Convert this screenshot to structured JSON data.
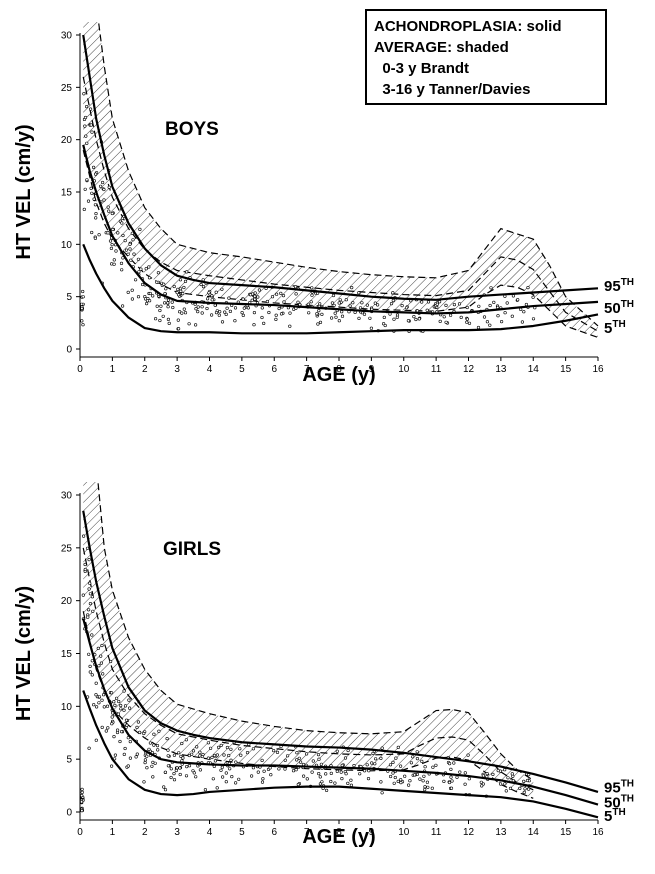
{
  "legend": {
    "lines": [
      "ACHONDROPLASIA: solid",
      "AVERAGE: shaded",
      "  0-3 y Brandt",
      "  3-16 y Tanner/Davies"
    ]
  },
  "colors": {
    "ink": "#000000",
    "background": "#ffffff",
    "hatch": "#444444"
  },
  "chart_data": [
    {
      "type": "line",
      "title": "BOYS",
      "xlabel": "AGE (y)",
      "ylabel": "HT VEL (cm/y)",
      "xlim": [
        0,
        16
      ],
      "ylim": [
        0,
        30
      ],
      "grid": false,
      "x_ticks": [
        "0",
        "1",
        "2",
        "3",
        "4",
        "5",
        "6",
        "7",
        "8",
        "9",
        "10",
        "11",
        "12",
        "13",
        "14",
        "15",
        "16"
      ],
      "y_ticks": [
        "0",
        "5",
        "10",
        "15",
        "20",
        "25",
        "30"
      ],
      "curve_labels": [
        {
          "text": "95",
          "sup": "TH",
          "y": 6.0
        },
        {
          "text": "50",
          "sup": "TH",
          "y": 3.9
        },
        {
          "text": "5",
          "sup": "TH",
          "y": 2.0
        }
      ],
      "series": [
        {
          "name": "95TH",
          "style": "solid",
          "x": [
            0.1,
            0.3,
            0.5,
            0.75,
            1,
            1.5,
            2,
            2.5,
            3,
            3.5,
            4,
            5,
            6,
            7,
            8,
            9,
            10,
            11,
            12,
            13,
            14,
            15,
            16
          ],
          "y": [
            30,
            26,
            22,
            18.5,
            15.5,
            12,
            9.6,
            8,
            7,
            6.6,
            6.3,
            6.1,
            5.9,
            5.6,
            5.3,
            5.0,
            4.8,
            4.7,
            5.0,
            5.2,
            5.4,
            5.6,
            5.8
          ]
        },
        {
          "name": "50TH",
          "style": "solid",
          "x": [
            0.1,
            0.3,
            0.5,
            0.75,
            1,
            1.5,
            2,
            2.5,
            3,
            3.5,
            4,
            5,
            6,
            7,
            8,
            9,
            10,
            11,
            12,
            13,
            14,
            15,
            16
          ],
          "y": [
            19.5,
            17,
            15,
            12.8,
            10.8,
            8.2,
            6.3,
            5.2,
            4.6,
            4.5,
            4.4,
            4.3,
            4.2,
            4.0,
            3.8,
            3.6,
            3.5,
            3.4,
            3.5,
            3.8,
            4.1,
            4.3,
            4.5
          ]
        },
        {
          "name": "5TH",
          "style": "solid",
          "x": [
            0.1,
            0.3,
            0.5,
            0.75,
            1,
            1.5,
            2,
            2.5,
            3,
            3.5,
            4,
            5,
            6,
            7,
            8,
            9,
            10,
            11,
            12,
            13,
            14,
            15,
            16
          ],
          "y": [
            10,
            8.5,
            7.2,
            5.8,
            4.6,
            3,
            2,
            1.7,
            1.6,
            1.6,
            1.6,
            1.5,
            1.5,
            1.5,
            1.6,
            1.7,
            1.8,
            1.8,
            1.8,
            1.9,
            2.2,
            2.7,
            3.3
          ]
        }
      ],
      "average_band": {
        "upper": {
          "x": [
            0.1,
            0.5,
            0.75,
            1,
            1.5,
            2,
            2.5,
            3,
            4,
            5,
            6,
            7,
            8,
            9,
            10,
            11,
            12,
            12.5,
            13,
            13.5,
            14,
            14.5,
            15,
            16
          ],
          "y": [
            33,
            33,
            27,
            22,
            17,
            13.5,
            11.5,
            10,
            9.2,
            8.8,
            8.3,
            7.8,
            7.4,
            7.1,
            6.9,
            6.8,
            7.5,
            9.5,
            11.5,
            11,
            10.5,
            8,
            5,
            2.2
          ]
        },
        "mean": {
          "x": [
            0.1,
            0.5,
            0.75,
            1,
            1.5,
            2,
            2.5,
            3,
            4,
            5,
            6,
            7,
            8,
            9,
            10,
            11,
            12,
            12.5,
            13,
            13.5,
            14,
            14.5,
            15,
            16
          ],
          "y": [
            26,
            20,
            17,
            14.5,
            11.5,
            9.5,
            8.3,
            7.5,
            7,
            6.6,
            6.2,
            5.9,
            5.6,
            5.4,
            5.2,
            5.1,
            5.6,
            7.2,
            8.8,
            8.5,
            7.6,
            5.5,
            3.5,
            1.7
          ]
        },
        "lower": {
          "x": [
            0.1,
            0.5,
            0.75,
            1,
            1.5,
            2,
            2.5,
            3,
            4,
            5,
            6,
            7,
            8,
            9,
            10,
            11,
            12,
            12.5,
            13,
            13.5,
            14,
            14.5,
            15,
            16
          ],
          "y": [
            19,
            14,
            12,
            10.5,
            8.8,
            7.2,
            6.2,
            5.4,
            5,
            4.7,
            4.4,
            4.2,
            4.0,
            3.8,
            3.7,
            3.6,
            4.0,
            5.2,
            6.1,
            5.9,
            5.2,
            3.7,
            2.2,
            1.1
          ]
        }
      },
      "scatter_points": 430
    },
    {
      "type": "line",
      "title": "GIRLS",
      "xlabel": "AGE (y)",
      "ylabel": "HT VEL (cm/y)",
      "xlim": [
        0,
        16
      ],
      "ylim": [
        0,
        30
      ],
      "grid": false,
      "x_ticks": [
        "0",
        "1",
        "2",
        "3",
        "4",
        "5",
        "6",
        "7",
        "8",
        "9",
        "10",
        "11",
        "12",
        "13",
        "14",
        "15",
        "16"
      ],
      "y_ticks": [
        "0",
        "5",
        "10",
        "15",
        "20",
        "25",
        "30"
      ],
      "curve_labels": [
        {
          "text": "95",
          "sup": "TH",
          "y": 2.3
        },
        {
          "text": "50",
          "sup": "TH",
          "y": 0.9
        },
        {
          "text": "5",
          "sup": "TH",
          "y": -0.4
        }
      ],
      "series": [
        {
          "name": "95TH",
          "style": "solid",
          "x": [
            0.1,
            0.3,
            0.5,
            0.75,
            1,
            1.5,
            2,
            2.5,
            3,
            3.5,
            4,
            5,
            6,
            7,
            8,
            9,
            10,
            11,
            12,
            13,
            14,
            15,
            16
          ],
          "y": [
            28.5,
            25,
            21.8,
            18.5,
            15.5,
            11.8,
            9.6,
            8.4,
            7.7,
            7.3,
            7.0,
            6.6,
            6.4,
            6.2,
            6.1,
            5.9,
            5.6,
            5.2,
            4.8,
            4.3,
            3.6,
            2.8,
            1.9
          ]
        },
        {
          "name": "50TH",
          "style": "solid",
          "x": [
            0.1,
            0.3,
            0.5,
            0.75,
            1,
            1.5,
            2,
            2.5,
            3,
            3.5,
            4,
            5,
            6,
            7,
            8,
            9,
            10,
            11,
            12,
            13,
            14,
            15,
            16
          ],
          "y": [
            18.3,
            16,
            13.8,
            11.6,
            9.8,
            7.3,
            5.8,
            5.0,
            4.7,
            4.6,
            4.5,
            4.4,
            4.4,
            4.3,
            4.2,
            4.1,
            3.9,
            3.7,
            3.4,
            3.0,
            2.4,
            1.6,
            0.7
          ]
        },
        {
          "name": "5TH",
          "style": "solid",
          "x": [
            0.1,
            0.3,
            0.5,
            0.75,
            1,
            1.5,
            2,
            2.5,
            3,
            3.5,
            4,
            5,
            6,
            7,
            8,
            9,
            10,
            11,
            12,
            13,
            14,
            15,
            16
          ],
          "y": [
            11.5,
            9.8,
            8.2,
            6.5,
            5.0,
            3.1,
            2.1,
            1.7,
            1.6,
            1.7,
            1.9,
            2.1,
            2.3,
            2.4,
            2.4,
            2.2,
            2.0,
            1.8,
            1.6,
            1.4,
            1.0,
            0.3,
            -0.5
          ]
        }
      ],
      "average_band": {
        "upper": {
          "x": [
            0.1,
            0.5,
            0.75,
            1,
            1.5,
            2,
            2.5,
            3,
            4,
            5,
            6,
            7,
            8,
            9,
            10,
            10.5,
            11,
            11.5,
            12,
            12.5,
            13,
            13.5,
            14
          ],
          "y": [
            33,
            33,
            25,
            21,
            16.5,
            13.5,
            11.5,
            10.2,
            9.3,
            8.6,
            8.1,
            7.7,
            7.5,
            7.4,
            7.6,
            8.6,
            9.6,
            9.7,
            9.4,
            7.5,
            5.5,
            4.0,
            3.0
          ]
        },
        "mean": {
          "x": [
            0.1,
            0.5,
            0.75,
            1,
            1.5,
            2,
            2.5,
            3,
            4,
            5,
            6,
            7,
            8,
            9,
            10,
            10.5,
            11,
            11.5,
            12,
            12.5,
            13,
            13.5,
            14
          ],
          "y": [
            25,
            19,
            16,
            13.5,
            11,
            9.3,
            8.2,
            7.4,
            6.8,
            6.3,
            6.0,
            5.7,
            5.5,
            5.4,
            5.5,
            6.3,
            7.0,
            7.1,
            6.8,
            5.4,
            3.8,
            2.8,
            2.1
          ]
        },
        "lower": {
          "x": [
            0.1,
            0.5,
            0.75,
            1,
            1.5,
            2,
            2.5,
            3,
            4,
            5,
            6,
            7,
            8,
            9,
            10,
            10.5,
            11,
            11.5,
            12,
            12.5,
            13,
            13.5,
            14
          ],
          "y": [
            19,
            13.5,
            11.5,
            9.8,
            8.2,
            7,
            6.1,
            5.5,
            5.0,
            4.6,
            4.3,
            4.1,
            4.0,
            3.9,
            4.0,
            4.5,
            5.1,
            5.2,
            4.9,
            3.8,
            2.6,
            1.9,
            1.3
          ]
        }
      },
      "scatter_points": 430
    }
  ]
}
